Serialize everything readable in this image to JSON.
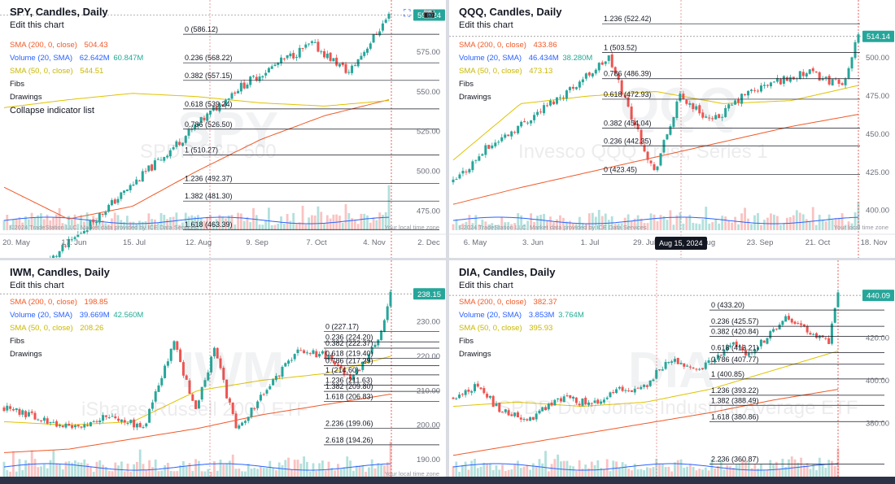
{
  "chart_data": [
    {
      "type": "candlestick",
      "symbol": "SPY",
      "title": "SPY, Candles, Daily",
      "edit_label": "Edit this chart",
      "indicators": [
        {
          "label": "SMA (200, 0, close)",
          "values": [
            "504.43"
          ],
          "color": "#f05a28"
        },
        {
          "label": "Volume (20, SMA)",
          "values": [
            "62.642M",
            "60.847M"
          ],
          "color": "#2962ff",
          "value2_color": "#22ab94"
        },
        {
          "label": "SMA (50, 0, close)",
          "values": [
            "544.51"
          ],
          "color": "#c9b800"
        }
      ],
      "extra_labels": [
        "Fibs",
        "Drawings",
        "Collapse indicator list"
      ],
      "watermark": "SPY",
      "watermark_desc": "SPDR S&P 500",
      "last_price": "598.24",
      "ylim": [
        463,
        600
      ],
      "y_ticks": [
        {
          "value": 575,
          "label": "575.00"
        },
        {
          "value": 550,
          "label": "550.00"
        },
        {
          "value": 525,
          "label": "525.00"
        },
        {
          "value": 500,
          "label": "500.00"
        },
        {
          "value": 475,
          "label": "475.00"
        }
      ],
      "x_labels": [
        "20. May",
        "17. Jun",
        "15. Jul",
        "12. Aug",
        "9. Sep",
        "7. Oct",
        "4. Nov",
        "2. Dec"
      ],
      "fib_levels": [
        {
          "ratio": "0",
          "value": 586.12
        },
        {
          "ratio": "0.236",
          "value": 568.22
        },
        {
          "ratio": "0.382",
          "value": 557.15
        },
        {
          "ratio": "0.618",
          "value": 539.24
        },
        {
          "ratio": "0.786",
          "value": 526.5
        },
        {
          "ratio": "1",
          "value": 510.27
        },
        {
          "ratio": "1.236",
          "value": 492.37
        },
        {
          "ratio": "1.382",
          "value": 481.3
        },
        {
          "ratio": "1.618",
          "value": 463.39
        }
      ],
      "anchors": [
        52,
        510,
        75,
        551,
        90,
        569,
        100,
        580,
        112,
        562,
        125,
        598
      ],
      "sma50": [
        540,
        545,
        549,
        547,
        543,
        541,
        544.5
      ],
      "sma200": [
        490,
        470,
        478,
        500,
        520,
        535,
        545
      ],
      "credit": "©2024 TradeStation LLC. Market data provided by ICE Data Services",
      "local_time": "Your local time zone"
    },
    {
      "type": "candlestick",
      "symbol": "QQQ",
      "title": "QQQ, Candles, Daily",
      "edit_label": "Edit this chart",
      "indicators": [
        {
          "label": "SMA (200, 0, close)",
          "values": [
            "433.86"
          ],
          "color": "#f05a28"
        },
        {
          "label": "Volume (20, SMA)",
          "values": [
            "46.434M",
            "38.280M"
          ],
          "color": "#2962ff",
          "value2_color": "#22ab94"
        },
        {
          "label": "SMA (50, 0, close)",
          "values": [
            "473.13"
          ],
          "color": "#c9b800"
        }
      ],
      "extra_labels": [
        "Fibs",
        "Drawings"
      ],
      "watermark": "QQQ",
      "watermark_desc": "Invesco QQQ Trust, Series 1",
      "last_price": "514.14",
      "tooltip": "Aug 15, 2024",
      "ylim": [
        387,
        530
      ],
      "y_ticks": [
        {
          "value": 500,
          "label": "500.00"
        },
        {
          "value": 475,
          "label": "475.00"
        },
        {
          "value": 450,
          "label": "450.00"
        },
        {
          "value": 425,
          "label": "425.00"
        },
        {
          "value": 400,
          "label": "400.00"
        }
      ],
      "x_labels": [
        "6. May",
        "3. Jun",
        "1. Jul",
        "29. Jul",
        "26. Aug",
        "23. Sep",
        "21. Oct",
        "18. Nov"
      ],
      "fib_levels": [
        {
          "ratio": "1.236",
          "value": 522.42
        },
        {
          "ratio": "1",
          "value": 503.52
        },
        {
          "ratio": "0.786",
          "value": 486.39
        },
        {
          "ratio": "0.618",
          "value": 472.93
        },
        {
          "ratio": "0.382",
          "value": 454.04
        },
        {
          "ratio": "0.236",
          "value": 442.35
        },
        {
          "ratio": "0",
          "value": 423.45
        }
      ],
      "anchors": [
        0,
        418,
        10,
        440,
        20,
        455,
        35,
        478,
        48,
        500,
        55,
        462,
        62,
        425,
        70,
        475,
        80,
        458,
        90,
        476,
        100,
        485,
        110,
        490,
        120,
        482,
        125,
        514
      ],
      "sma50": [
        433,
        470,
        475,
        478,
        470,
        472,
        482
      ],
      "sma200": [
        404,
        415,
        425,
        435,
        445,
        455,
        463
      ],
      "credit": "©2024 TradeStation LLC. Market data provided by ICE Data Services",
      "local_time": "Your local time zone"
    },
    {
      "type": "candlestick",
      "symbol": "IWM",
      "title": "IWM, Candles, Daily",
      "edit_label": "Edit this chart",
      "indicators": [
        {
          "label": "SMA (200, 0, close)",
          "values": [
            "198.85"
          ],
          "color": "#f05a28"
        },
        {
          "label": "Volume (20, SMA)",
          "values": [
            "39.669M",
            "42.560M"
          ],
          "color": "#2962ff",
          "value2_color": "#22ab94"
        },
        {
          "label": "SMA (50, 0, close)",
          "values": [
            "208.26"
          ],
          "color": "#c9b800"
        }
      ],
      "extra_labels": [
        "Fibs",
        "Drawings"
      ],
      "watermark": "IWM",
      "watermark_desc": "iShares Russell 2000 ETF",
      "last_price": "238.15",
      "ylim": [
        185,
        242
      ],
      "y_ticks": [
        {
          "value": 230,
          "label": "230.00"
        },
        {
          "value": 220,
          "label": "220.00"
        },
        {
          "value": 210,
          "label": "210.00"
        },
        {
          "value": 200,
          "label": "200.00"
        },
        {
          "value": 190,
          "label": "190.00"
        }
      ],
      "x_labels": [],
      "fib_levels": [
        {
          "ratio": "0",
          "value": 227.17
        },
        {
          "ratio": "0.236",
          "value": 224.2
        },
        {
          "ratio": "0.382",
          "value": 222.37
        },
        {
          "ratio": "0.618",
          "value": 219.4
        },
        {
          "ratio": "0.786",
          "value": 217.29
        },
        {
          "ratio": "1",
          "value": 214.6
        },
        {
          "ratio": "1.236",
          "value": 211.63
        },
        {
          "ratio": "1.382",
          "value": 209.8
        },
        {
          "ratio": "1.618",
          "value": 206.83
        },
        {
          "ratio": "2.236",
          "value": 199.06
        },
        {
          "ratio": "2.618",
          "value": 194.26
        }
      ],
      "anchors": [
        0,
        205,
        15,
        201,
        25,
        199,
        35,
        203,
        45,
        199,
        55,
        224,
        62,
        204,
        68,
        222,
        75,
        199,
        85,
        210,
        95,
        222,
        105,
        220,
        112,
        214,
        118,
        220,
        122,
        228,
        125,
        238
      ],
      "sma50": [
        201,
        200,
        201,
        210,
        213,
        215,
        220
      ],
      "sma200": [
        192,
        193,
        196,
        199,
        203,
        206,
        209
      ],
      "credit": "",
      "local_time": "Your local time zone"
    },
    {
      "type": "candlestick",
      "symbol": "DIA",
      "title": "DIA, Candles, Daily",
      "edit_label": "Edit this chart",
      "indicators": [
        {
          "label": "SMA (200, 0, close)",
          "values": [
            "382.37"
          ],
          "color": "#f05a28"
        },
        {
          "label": "Volume (20, SMA)",
          "values": [
            "3.853M",
            "3.764M"
          ],
          "color": "#2962ff",
          "value2_color": "#22ab94"
        },
        {
          "label": "SMA (50, 0, close)",
          "values": [
            "395.93"
          ],
          "color": "#c9b800"
        }
      ],
      "extra_labels": [
        "Fibs",
        "Drawings"
      ],
      "watermark": "DIA",
      "watermark_desc": "SPDR Dow Jones Industrial Average ETF",
      "last_price": "440.09",
      "ylim": [
        355,
        447
      ],
      "y_ticks": [
        {
          "value": 420,
          "label": "420.00"
        },
        {
          "value": 400,
          "label": "400.00"
        },
        {
          "value": 380,
          "label": "380.00"
        }
      ],
      "x_labels": [],
      "fib_levels": [
        {
          "ratio": "0",
          "value": 433.2
        },
        {
          "ratio": "0.236",
          "value": 425.57
        },
        {
          "ratio": "0.382",
          "value": 420.84
        },
        {
          "ratio": "0.618",
          "value": 413.21
        },
        {
          "ratio": "0.786",
          "value": 407.77
        },
        {
          "ratio": "1",
          "value": 400.85
        },
        {
          "ratio": "1.236",
          "value": 393.22
        },
        {
          "ratio": "1.382",
          "value": 388.49
        },
        {
          "ratio": "1.618",
          "value": 380.86
        },
        {
          "ratio": "2.236",
          "value": 360.87
        }
      ],
      "anchors": [
        0,
        392,
        8,
        398,
        15,
        386,
        25,
        382,
        35,
        392,
        45,
        389,
        55,
        396,
        62,
        397,
        70,
        410,
        80,
        405,
        90,
        417,
        95,
        413,
        100,
        418,
        108,
        430,
        112,
        427,
        118,
        420,
        122,
        418,
        125,
        440
      ],
      "sma50": [
        388,
        390,
        388,
        390,
        396,
        405,
        414
      ],
      "sma200": [
        365,
        370,
        375,
        380,
        385,
        391,
        396
      ],
      "credit": "",
      "local_time": ""
    }
  ]
}
